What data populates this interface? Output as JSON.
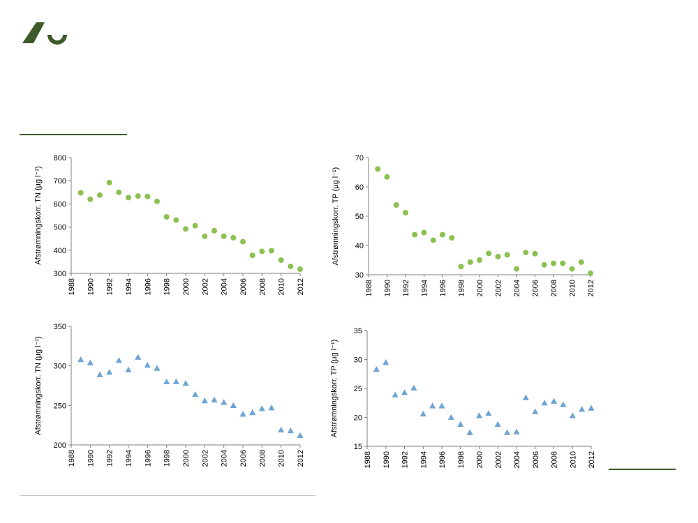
{
  "logo": {
    "name": "aarhus-university-logo"
  },
  "colors": {
    "green": "#8cc152",
    "blue": "#6fa5d4",
    "rule_green": "#3f5a2a"
  },
  "chart_data": [
    {
      "type": "scatter",
      "marker": "circle",
      "color": "#8cc152",
      "ylabel": "Afstrømningskorr. TN (µg l⁻¹)",
      "xlim": [
        1988,
        2012
      ],
      "ylim": [
        300,
        800
      ],
      "xticks": [
        "1988",
        "1990",
        "1992",
        "1994",
        "1996",
        "1998",
        "2000",
        "2002",
        "2004",
        "2006",
        "2008",
        "2010",
        "2012"
      ],
      "yticks": [
        "300",
        "400",
        "500",
        "600",
        "700",
        "800"
      ],
      "x": [
        1989,
        1990,
        1991,
        1992,
        1993,
        1994,
        1995,
        1996,
        1997,
        1998,
        1999,
        2000,
        2001,
        2002,
        2003,
        2004,
        2005,
        2006,
        2007,
        2008,
        2009,
        2010,
        2011,
        2012
      ],
      "y": [
        648,
        620,
        638,
        692,
        650,
        627,
        634,
        632,
        611,
        544,
        530,
        492,
        506,
        460,
        484,
        460,
        454,
        437,
        378,
        395,
        398,
        357,
        330,
        318
      ]
    },
    {
      "type": "scatter",
      "marker": "circle",
      "color": "#8cc152",
      "ylabel": "Afstrømningskorr. TP (µg l⁻¹)",
      "xlim": [
        1988,
        2012
      ],
      "ylim": [
        30,
        70
      ],
      "xticks": [
        "1988",
        "1990",
        "1992",
        "1994",
        "1996",
        "1998",
        "2000",
        "2002",
        "2004",
        "2006",
        "2008",
        "2010",
        "2012"
      ],
      "yticks": [
        "30",
        "40",
        "50",
        "60",
        "70"
      ],
      "x": [
        1989,
        1990,
        1991,
        1992,
        1993,
        1994,
        1995,
        1996,
        1997,
        1998,
        1999,
        2000,
        2001,
        2002,
        2003,
        2004,
        2005,
        2006,
        2007,
        2008,
        2009,
        2010,
        2011,
        2012
      ],
      "y": [
        66.1,
        63.4,
        53.8,
        51.2,
        43.7,
        44.4,
        41.8,
        43.7,
        42.6,
        32.8,
        34.3,
        35.0,
        37.3,
        36.2,
        36.8,
        32.0,
        37.6,
        37.2,
        33.4,
        33.9,
        33.9,
        32.0,
        34.3,
        30.5
      ]
    },
    {
      "type": "scatter",
      "marker": "triangle",
      "color": "#6fa5d4",
      "ylabel": "Afstrømningskorr. TN (µg l⁻¹)",
      "xlim": [
        1988,
        2012
      ],
      "ylim": [
        200,
        350
      ],
      "xticks": [
        "1988",
        "1990",
        "1992",
        "1994",
        "1996",
        "1998",
        "2000",
        "2002",
        "2004",
        "2006",
        "2008",
        "2010",
        "2012"
      ],
      "yticks": [
        "200",
        "250",
        "300",
        "350"
      ],
      "x": [
        1989,
        1990,
        1991,
        1992,
        1993,
        1994,
        1995,
        1996,
        1997,
        1998,
        1999,
        2000,
        2001,
        2002,
        2003,
        2004,
        2005,
        2006,
        2007,
        2008,
        2009,
        2010,
        2011,
        2012
      ],
      "y": [
        308,
        304,
        289,
        292,
        307,
        295,
        311,
        301,
        297,
        280,
        280,
        278,
        264,
        256,
        257,
        254,
        250,
        239,
        241,
        246,
        247,
        219,
        218,
        212
      ]
    },
    {
      "type": "scatter",
      "marker": "triangle",
      "color": "#6fa5d4",
      "ylabel": "Afstrømningskorr. TP (µg l⁻¹)",
      "xlim": [
        1988,
        2012
      ],
      "ylim": [
        15,
        35
      ],
      "xticks": [
        "1988",
        "1990",
        "1992",
        "1994",
        "1996",
        "1998",
        "2000",
        "2002",
        "2004",
        "2006",
        "2008",
        "2010",
        "2012"
      ],
      "yticks": [
        "15",
        "20",
        "25",
        "30",
        "35"
      ],
      "x": [
        1989,
        1990,
        1991,
        1992,
        1993,
        1994,
        1995,
        1996,
        1997,
        1998,
        1999,
        2000,
        2001,
        2002,
        2003,
        2004,
        2005,
        2006,
        2007,
        2008,
        2009,
        2010,
        2011,
        2012
      ],
      "y": [
        28.3,
        29.5,
        23.9,
        24.3,
        25.1,
        20.6,
        22.0,
        22.0,
        20.0,
        18.8,
        17.4,
        20.3,
        20.7,
        18.8,
        17.4,
        17.5,
        23.4,
        21.0,
        22.5,
        22.8,
        22.2,
        20.3,
        21.4,
        21.6
      ]
    }
  ]
}
